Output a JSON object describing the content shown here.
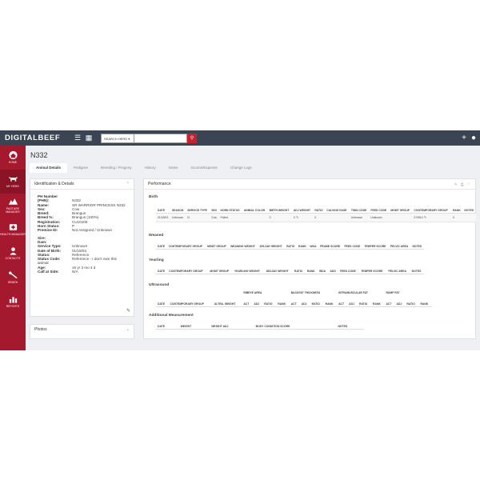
{
  "app": {
    "logo": "DIGITALBEEF"
  },
  "topbar": {
    "menu_icon": "☰",
    "calendar_icon": "▦",
    "search_dropdown": "SEARCH HERD ▾",
    "search_icon": "⚲",
    "add_icon": "+",
    "user_icon": "●"
  },
  "sidebar": {
    "items": [
      {
        "label": "HOME",
        "icon": "home-icon"
      },
      {
        "label": "MY HERD",
        "icon": "cattle-icon"
      },
      {
        "label": "PASTURE MANAGER",
        "icon": "pasture-icon"
      },
      {
        "label": "HEALTH MANAGER",
        "icon": "health-icon"
      },
      {
        "label": "CONTACTS",
        "icon": "contacts-icon"
      },
      {
        "label": "SEMEN",
        "icon": "semen-icon"
      },
      {
        "label": "REPORTS",
        "icon": "reports-icon"
      }
    ]
  },
  "page": {
    "title": "N332"
  },
  "tabs": [
    "Animal Details",
    "Pedigree",
    "Breeding / Progeny",
    "History",
    "Notes",
    "Income/Expense",
    "Change Logs"
  ],
  "identification": {
    "title": "Identification & Details",
    "chevron": "⌃",
    "edit_icon": "✎",
    "header_line": "PH Number",
    "rows1": [
      {
        "k": "(PHN):",
        "v": "N332"
      },
      {
        "k": "Name:",
        "v": "SR WARRIOR PRINCESS N332"
      },
      {
        "k": "Sex:",
        "v": "Cow"
      },
      {
        "k": "Breed:",
        "v": "Brangus"
      },
      {
        "k": "Breed %:",
        "v": "Brangus (100%)"
      },
      {
        "k": "Registration:",
        "v": "CU10108"
      },
      {
        "k": "Horn Status:",
        "v": "P"
      },
      {
        "k": "Premise ID:",
        "v": "Not Assigned / Unknown"
      }
    ],
    "rows2": [
      {
        "k": "Sire:",
        "v": ""
      },
      {
        "k": "Dam:",
        "v": ""
      },
      {
        "k": "Service Type:",
        "v": "Unknown"
      },
      {
        "k": "Date of Birth:",
        "v": "01/18/03"
      },
      {
        "k": "Status:",
        "v": "Reference"
      },
      {
        "k": "Status Code:",
        "v": "Reference - I don't own this"
      }
    ],
    "wrap_line": "animal",
    "rows3": [
      {
        "k": "Age:",
        "v": "16 yr 3 mo 4 d"
      },
      {
        "k": "Calf at Side:",
        "v": "N/A"
      }
    ]
  },
  "photos": {
    "title": "Photos",
    "chevron": "⌄"
  },
  "performance": {
    "title": "Performance",
    "tools": "✎ ⎙ ⌃",
    "birth": {
      "title": "Birth",
      "headers": [
        "DATE",
        "SEASON",
        "SERVICE TYPE",
        "SEX",
        "HORN STATUS",
        "ANIMAL COLOR",
        "BIRTH WEIGHT",
        "ADJ WEIGHT",
        "RATIO",
        "CALVING EASE",
        "TWIN CODE",
        "FEED CODE",
        "MGMT GROUP",
        "CONTEMPORARY GROUP",
        "RANK",
        "NOTES"
      ],
      "row": [
        "01/18/03",
        "Unknown",
        "N",
        "Cow",
        "Polled",
        "",
        "0",
        "0",
        "0",
        "",
        "Unknown",
        "Unknown",
        "",
        "274914",
        "0",
        ""
      ]
    },
    "weaned": {
      "title": "Weaned",
      "headers": [
        "DATE",
        "CONTEMPORARY GROUP",
        "MGMT GROUP",
        "WEANING WEIGHT",
        "205-DAY WEIGHT",
        "RATIO",
        "RANK",
        "WDA",
        "FRAME SCORE",
        "FEED CODE",
        "TEMPER SCORE",
        "PELVIC AREA",
        "NOTES"
      ]
    },
    "yearling": {
      "title": "Yearling",
      "headers": [
        "DATE",
        "CONTEMPORARY GROUP",
        "MGMT GROUP",
        "YEARLING WEIGHT",
        "365-DAY WEIGHT",
        "RATIO",
        "RANK",
        "WDA",
        "ADG",
        "FEED CODE",
        "TEMPER SCORE",
        "PELVIC AREA",
        "NOTES"
      ]
    },
    "ultrasound": {
      "title": "Ultrasound",
      "groups": [
        "RIBEYE AREA",
        "BACKFAT THICKNESS",
        "INTRAMUSCULAR FAT",
        "RUMP FAT"
      ],
      "headers": [
        "DATE",
        "CONTEMPORARY GROUP",
        "ULTRA. WEIGHT",
        "ACT",
        "ADJ",
        "RATIO",
        "RANK",
        "ACT",
        "ADJ",
        "RATIO",
        "RANK",
        "ACT",
        "ADJ",
        "RATIO",
        "RANK",
        "ACT",
        "ADJ",
        "RATIO",
        "RANK"
      ]
    },
    "additional": {
      "title": "Additional Measurement",
      "headers": [
        "DATE",
        "WEIGHT",
        "WEIGHT ADJ",
        "BODY CONDITION SCORE",
        "NOTES"
      ]
    }
  }
}
